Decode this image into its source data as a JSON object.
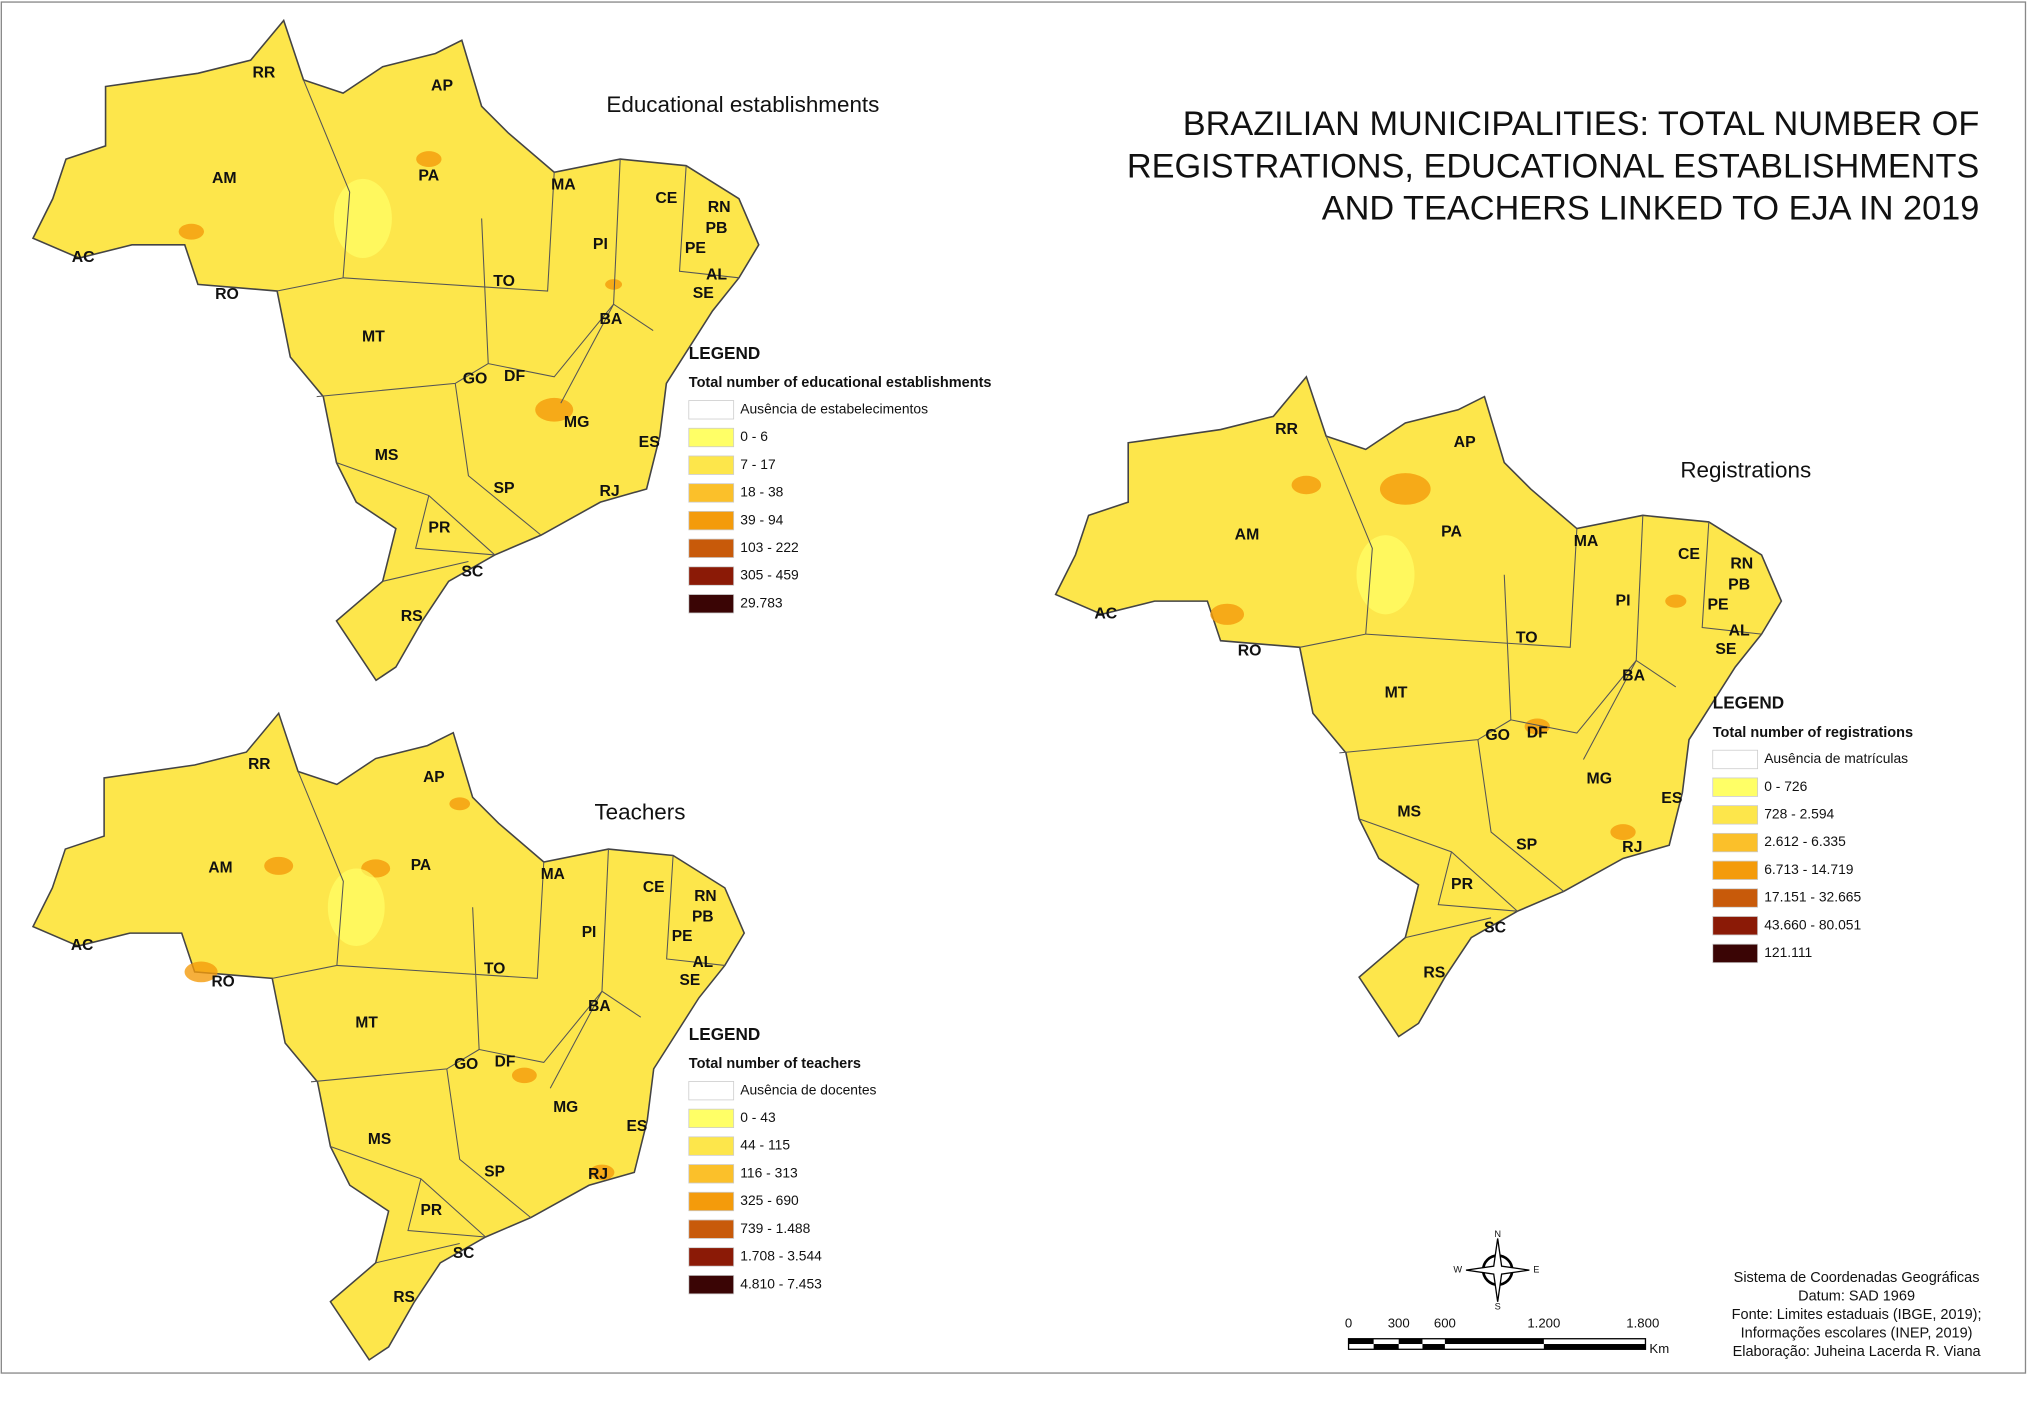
{
  "title": [
    "BRAZILIAN MUNICIPALITIES: TOTAL NUMBER OF",
    "REGISTRATIONS, EDUCATIONAL ESTABLISHMENTS",
    "AND TEACHERS LINKED TO EJA IN 2019"
  ],
  "maps": [
    {
      "title": "Educational establishments",
      "legend": {
        "heading": "LEGEND",
        "subtitle": "Total number of educational establishments",
        "classes": [
          {
            "label": "Ausência de estabelecimentos",
            "color": "#ffffff"
          },
          {
            "label": "0 - 6",
            "color": "#ffff66"
          },
          {
            "label": "7 - 17",
            "color": "#fde64b"
          },
          {
            "label": "18 - 38",
            "color": "#fbc02a"
          },
          {
            "label": "39 - 94",
            "color": "#f49b0b"
          },
          {
            "label": "103 - 222",
            "color": "#c85a0a"
          },
          {
            "label": "305 - 459",
            "color": "#8b1a06"
          },
          {
            "label": "29.783",
            "color": "#3a0505"
          }
        ]
      }
    },
    {
      "title": "Teachers",
      "legend": {
        "heading": "LEGEND",
        "subtitle": "Total number of teachers",
        "classes": [
          {
            "label": "Ausência de docentes",
            "color": "#ffffff"
          },
          {
            "label": "0 - 43",
            "color": "#ffff66"
          },
          {
            "label": "44 - 115",
            "color": "#fde64b"
          },
          {
            "label": "116 - 313",
            "color": "#fbc02a"
          },
          {
            "label": "325 - 690",
            "color": "#f49b0b"
          },
          {
            "label": "739 - 1.488",
            "color": "#c85a0a"
          },
          {
            "label": "1.708 - 3.544",
            "color": "#8b1a06"
          },
          {
            "label": "4.810 - 7.453",
            "color": "#3a0505"
          }
        ]
      }
    },
    {
      "title": "Registrations",
      "legend": {
        "heading": "LEGEND",
        "subtitle": "Total number of registrations",
        "classes": [
          {
            "label": "Ausência de matrículas",
            "color": "#ffffff"
          },
          {
            "label": "0 - 726",
            "color": "#ffff66"
          },
          {
            "label": "728 - 2.594",
            "color": "#fde64b"
          },
          {
            "label": "2.612 - 6.335",
            "color": "#fbc02a"
          },
          {
            "label": "6.713 - 14.719",
            "color": "#f49b0b"
          },
          {
            "label": "17.151 - 32.665",
            "color": "#c85a0a"
          },
          {
            "label": "43.660 - 80.051",
            "color": "#8b1a06"
          },
          {
            "label": "121.111",
            "color": "#3a0505"
          }
        ]
      }
    }
  ],
  "states": [
    "RR",
    "AP",
    "AM",
    "PA",
    "MA",
    "CE",
    "RN",
    "PB",
    "PE",
    "AL",
    "SE",
    "PI",
    "AC",
    "RO",
    "TO",
    "BA",
    "MT",
    "GO",
    "DF",
    "MG",
    "ES",
    "MS",
    "SP",
    "RJ",
    "PR",
    "SC",
    "RS"
  ],
  "compass": [
    "N",
    "S",
    "E",
    "W"
  ],
  "scale": {
    "ticks": [
      "0",
      "300",
      "600",
      "1.200",
      "1.800"
    ],
    "unit": "Km"
  },
  "credits": [
    "Sistema de Coordenadas Geográficas",
    "Datum: SAD 1969",
    "Fonte: Limites estaduais (IBGE, 2019);",
    "Informações escolares (INEP, 2019)",
    "Elaboração: Juheina Lacerda R. Viana"
  ]
}
